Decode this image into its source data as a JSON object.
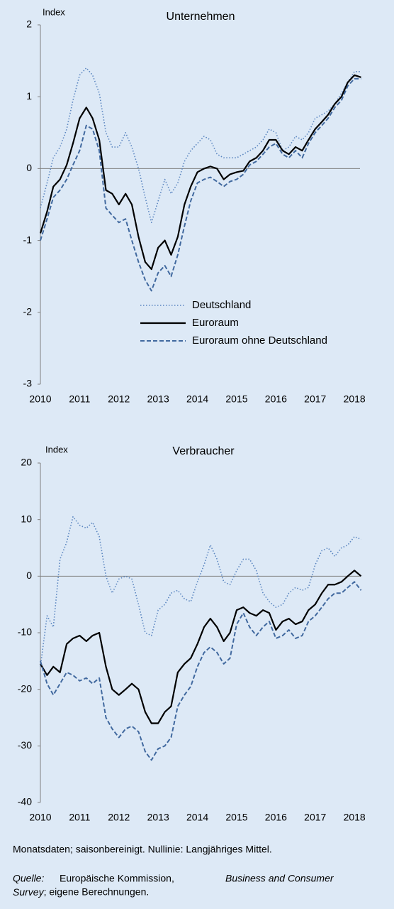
{
  "chart_data": [
    {
      "type": "line",
      "title": "Unternehmen",
      "y_label": "Index",
      "x": [
        2010,
        2010.17,
        2010.33,
        2010.5,
        2010.67,
        2010.83,
        2011,
        2011.17,
        2011.33,
        2011.5,
        2011.67,
        2011.83,
        2012,
        2012.17,
        2012.33,
        2012.5,
        2012.67,
        2012.83,
        2013,
        2013.17,
        2013.33,
        2013.5,
        2013.67,
        2013.83,
        2014,
        2014.17,
        2014.33,
        2014.5,
        2014.67,
        2014.83,
        2015,
        2015.17,
        2015.33,
        2015.5,
        2015.67,
        2015.83,
        2016,
        2016.17,
        2016.33,
        2016.5,
        2016.67,
        2016.83,
        2017,
        2017.17,
        2017.33,
        2017.5,
        2017.67,
        2017.83,
        2018,
        2018.17
      ],
      "series": [
        {
          "name": "Deutschland",
          "color": "#5b86c0",
          "linestyle": "dotted",
          "values": [
            -0.55,
            -0.2,
            0.15,
            0.3,
            0.55,
            0.95,
            1.3,
            1.4,
            1.3,
            1.05,
            0.5,
            0.3,
            0.3,
            0.5,
            0.3,
            0.0,
            -0.4,
            -0.75,
            -0.45,
            -0.15,
            -0.35,
            -0.2,
            0.1,
            0.25,
            0.35,
            0.45,
            0.4,
            0.2,
            0.15,
            0.15,
            0.15,
            0.2,
            0.25,
            0.3,
            0.4,
            0.55,
            0.5,
            0.25,
            0.3,
            0.45,
            0.4,
            0.5,
            0.7,
            0.75,
            0.8,
            0.9,
            1.05,
            1.2,
            1.35,
            1.35
          ]
        },
        {
          "name": "Euroraum",
          "color": "#000000",
          "linestyle": "solid",
          "values": [
            -0.9,
            -0.6,
            -0.25,
            -0.15,
            0.05,
            0.35,
            0.7,
            0.85,
            0.7,
            0.4,
            -0.3,
            -0.35,
            -0.5,
            -0.35,
            -0.5,
            -0.95,
            -1.3,
            -1.4,
            -1.1,
            -1.0,
            -1.2,
            -0.95,
            -0.5,
            -0.25,
            -0.05,
            0.0,
            0.03,
            0.0,
            -0.15,
            -0.08,
            -0.05,
            -0.03,
            0.1,
            0.15,
            0.25,
            0.4,
            0.4,
            0.25,
            0.2,
            0.3,
            0.25,
            0.4,
            0.55,
            0.65,
            0.75,
            0.9,
            1.0,
            1.2,
            1.3,
            1.27
          ]
        },
        {
          "name": "Euroraum ohne Deutschland",
          "color": "#41699f",
          "linestyle": "dashed",
          "values": [
            -1.0,
            -0.7,
            -0.4,
            -0.3,
            -0.15,
            0.05,
            0.25,
            0.6,
            0.55,
            0.25,
            -0.55,
            -0.65,
            -0.75,
            -0.7,
            -1.0,
            -1.3,
            -1.55,
            -1.7,
            -1.45,
            -1.35,
            -1.5,
            -1.2,
            -0.8,
            -0.45,
            -0.2,
            -0.15,
            -0.12,
            -0.18,
            -0.25,
            -0.18,
            -0.15,
            -0.08,
            0.05,
            0.1,
            0.2,
            0.3,
            0.35,
            0.2,
            0.15,
            0.25,
            0.15,
            0.35,
            0.5,
            0.6,
            0.7,
            0.85,
            0.95,
            1.15,
            1.25,
            1.25
          ]
        }
      ],
      "xlim": [
        2010,
        2018.25
      ],
      "ylim": [
        -3,
        2
      ],
      "xticks": [
        2010,
        2011,
        2012,
        2013,
        2014,
        2015,
        2016,
        2017,
        2018
      ],
      "yticks": [
        -3,
        -2,
        -1,
        0,
        1,
        2
      ],
      "legend": "lower center"
    },
    {
      "type": "line",
      "title": "Verbraucher",
      "y_label": "Index",
      "x": [
        2010,
        2010.17,
        2010.33,
        2010.5,
        2010.67,
        2010.83,
        2011,
        2011.17,
        2011.33,
        2011.5,
        2011.67,
        2011.83,
        2012,
        2012.17,
        2012.33,
        2012.5,
        2012.67,
        2012.83,
        2013,
        2013.17,
        2013.33,
        2013.5,
        2013.67,
        2013.83,
        2014,
        2014.17,
        2014.33,
        2014.5,
        2014.67,
        2014.83,
        2015,
        2015.17,
        2015.33,
        2015.5,
        2015.67,
        2015.83,
        2016,
        2016.17,
        2016.33,
        2016.5,
        2016.67,
        2016.83,
        2017,
        2017.17,
        2017.33,
        2017.5,
        2017.67,
        2017.83,
        2018,
        2018.17
      ],
      "series": [
        {
          "color": "#5b86c0",
          "linestyle": "dotted",
          "values": [
            -16,
            -7,
            -9,
            3,
            6,
            10.5,
            9,
            8.5,
            9.5,
            7,
            0,
            -3,
            -0.5,
            0,
            -0.5,
            -5,
            -10,
            -10.5,
            -6,
            -5,
            -3,
            -2.5,
            -4,
            -4.5,
            -1,
            2,
            5.5,
            3,
            -1,
            -1.5,
            1,
            3,
            3,
            1,
            -3,
            -4.5,
            -5.5,
            -5,
            -3,
            -2,
            -2.5,
            -2,
            2,
            4.5,
            5,
            3.5,
            5,
            5.5,
            7,
            6.5
          ]
        },
        {
          "color": "#000000",
          "linestyle": "solid",
          "values": [
            -15.5,
            -17.5,
            -16,
            -17,
            -12,
            -11,
            -10.5,
            -11.5,
            -10.5,
            -10,
            -16,
            -20,
            -21,
            -20,
            -19,
            -20,
            -24,
            -26,
            -26,
            -24,
            -23,
            -17,
            -15.5,
            -14.5,
            -12,
            -9,
            -7.5,
            -9,
            -11.5,
            -10,
            -6,
            -5.5,
            -6.5,
            -7,
            -6,
            -6.5,
            -9.5,
            -8,
            -7.5,
            -8.5,
            -8,
            -6,
            -5,
            -3,
            -1.5,
            -1.5,
            -1,
            0,
            1,
            0
          ]
        },
        {
          "color": "#41699f",
          "linestyle": "dashed",
          "values": [
            -15,
            -19,
            -21,
            -19,
            -17,
            -17.5,
            -18.5,
            -18,
            -19,
            -18,
            -25,
            -27,
            -28.5,
            -27,
            -26.5,
            -27.5,
            -31,
            -32.5,
            -30.5,
            -30,
            -28.5,
            -23,
            -21,
            -19.5,
            -16,
            -13.5,
            -12.5,
            -13.5,
            -15.5,
            -14.5,
            -8.5,
            -6.5,
            -9,
            -10.5,
            -9,
            -8,
            -11,
            -10.5,
            -9.5,
            -11,
            -10.5,
            -8,
            -7,
            -5.5,
            -4,
            -3,
            -3,
            -2,
            -1,
            -2.5
          ]
        }
      ],
      "xlim": [
        2010,
        2018.25
      ],
      "ylim": [
        -40,
        20
      ],
      "xticks": [
        2010,
        2011,
        2012,
        2013,
        2014,
        2015,
        2016,
        2017,
        2018
      ],
      "yticks": [
        -40,
        -30,
        -20,
        -10,
        0,
        10,
        20
      ]
    }
  ],
  "footer": {
    "note": "Monatsdaten; saisonbereinigt. Nullinie: Langjähriges Mittel.",
    "source_label": "Quelle:",
    "source_text": "Europäische Kommission,",
    "source_title": "Business and Consumer Survey",
    "source_end": "; eigene Berechnungen."
  }
}
